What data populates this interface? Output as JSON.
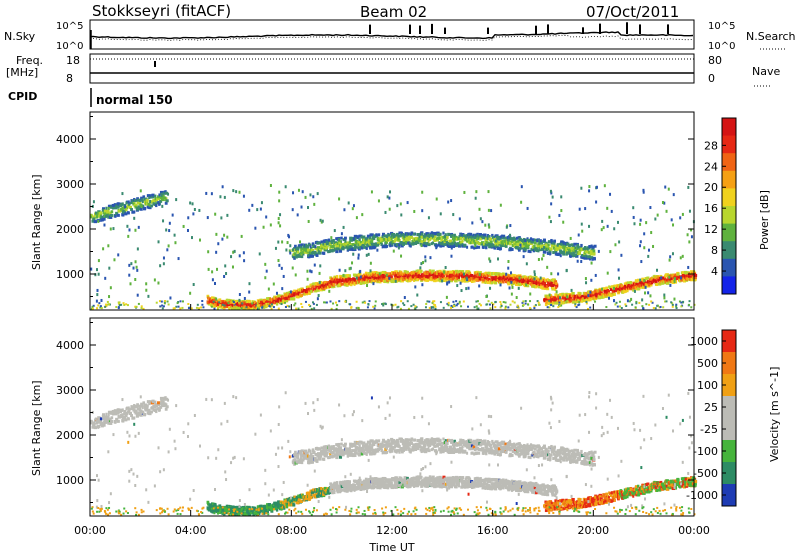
{
  "header": {
    "station": "Stokkseyri (fitACF)",
    "beam": "Beam 02",
    "date": "07/Oct/2011"
  },
  "top_panels": {
    "nsky_label": "N.Sky",
    "nsky_ticks": [
      "10^5",
      "10^0"
    ],
    "nsearch_label": "N.Search",
    "nsearch_ticks": [
      "10^5",
      "10^0"
    ],
    "freq_label": "Freq.",
    "freq_unit": "[MHz]",
    "freq_ticks": [
      "18",
      "8"
    ],
    "nave_label": "Nave",
    "nave_ticks": [
      "80",
      "0"
    ],
    "cpid_label": "CPID",
    "cpid_value": "normal 150"
  },
  "chart_data": [
    {
      "type": "heatmap",
      "name": "power",
      "ylabel": "Slant Range [km]",
      "xlabel": "",
      "ylim": [
        200,
        4600
      ],
      "yticks": [
        "1000",
        "2000",
        "3000",
        "4000"
      ],
      "xticks": [
        "00:00",
        "04:00",
        "08:00",
        "12:00",
        "16:00",
        "20:00",
        "00:00"
      ],
      "colorbar": {
        "label": "Power [dB]",
        "ticks": [
          "4",
          "8",
          "12",
          "16",
          "20",
          "24",
          "28"
        ],
        "colors": [
          "#1424e8",
          "#2a55b0",
          "#3a8a70",
          "#5fb23e",
          "#b8d62e",
          "#f0d21e",
          "#f5a014",
          "#f06414",
          "#e62814",
          "#d41414"
        ]
      },
      "regions": [
        {
          "label": "lower arc",
          "t": [
            4.6,
            5.0,
            5.6,
            6.4,
            7.2,
            8.0,
            8.8,
            9.5
          ],
          "range": [
            450,
            380,
            350,
            340,
            420,
            560,
            720,
            820
          ]
        },
        {
          "label": "main band",
          "t": [
            9.5,
            11.0,
            13.0,
            15.0,
            17.0,
            18.5
          ],
          "range": [
            850,
            950,
            1000,
            980,
            900,
            780
          ]
        },
        {
          "label": "upper band",
          "t": [
            8.0,
            10.0,
            12.0,
            14.0,
            16.0,
            18.0,
            20.0
          ],
          "range": [
            1500,
            1700,
            1800,
            1800,
            1750,
            1650,
            1500
          ]
        },
        {
          "label": "early layer",
          "t": [
            0.0,
            1.0,
            2.0,
            3.0
          ],
          "range": [
            2300,
            2450,
            2600,
            2750
          ]
        },
        {
          "label": "late band",
          "t": [
            18.0,
            19.5,
            21.0,
            22.5,
            24.0
          ],
          "range": [
            450,
            520,
            700,
            900,
            1000
          ]
        }
      ]
    },
    {
      "type": "heatmap",
      "name": "velocity",
      "ylabel": "Slant Range [km]",
      "xlabel": "Time UT",
      "ylim": [
        200,
        4600
      ],
      "yticks": [
        "1000",
        "2000",
        "3000",
        "4000"
      ],
      "xticks": [
        "00:00",
        "04:00",
        "08:00",
        "12:00",
        "16:00",
        "20:00",
        "00:00"
      ],
      "colorbar": {
        "label": "Velocity [m s^-1]",
        "ticks": [
          "1000",
          "500",
          "100",
          "25",
          "-25",
          "-100",
          "-500",
          "-1000"
        ],
        "colors": [
          "#1e3cb4",
          "#2d8c64",
          "#46b43c",
          "#bcbcb6",
          "#bcbcb6",
          "#f0a014",
          "#f07814",
          "#e62814"
        ]
      }
    }
  ]
}
